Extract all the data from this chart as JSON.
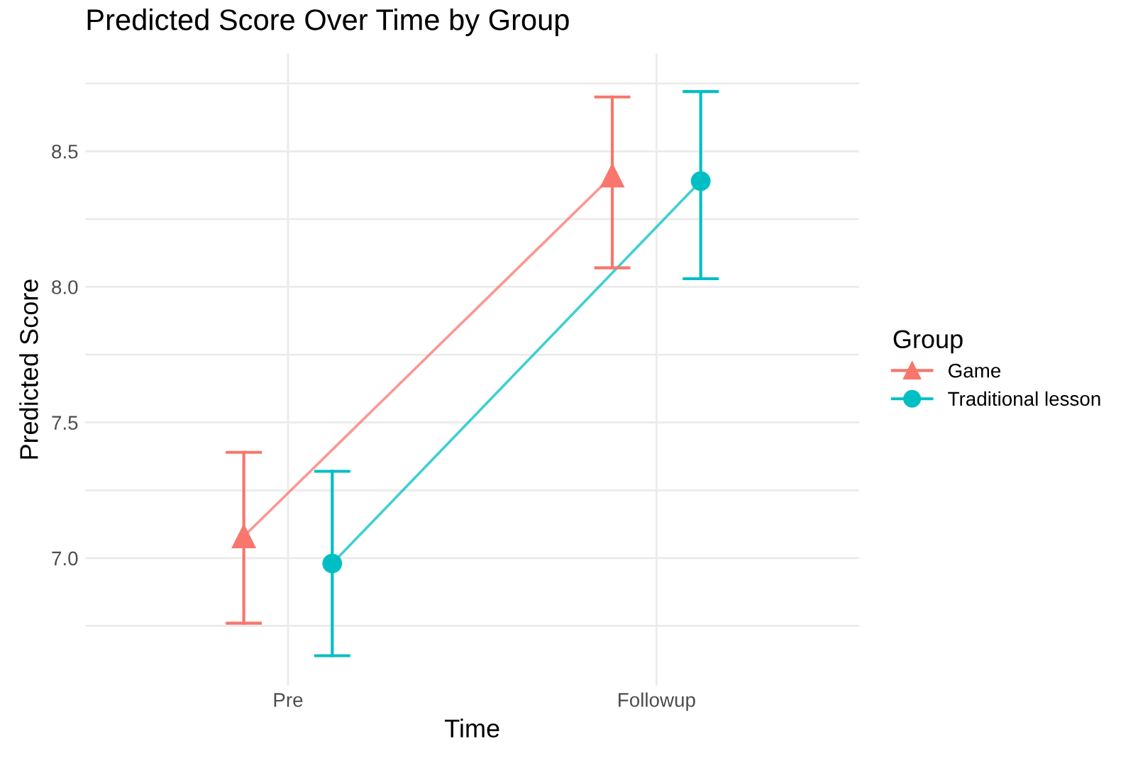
{
  "chart_data": {
    "type": "line",
    "title": "Predicted Score Over Time by Group",
    "xlabel": "Time",
    "ylabel": "Predicted Score",
    "legend_title": "Group",
    "categories": [
      "Pre",
      "Followup"
    ],
    "series": [
      {
        "name": "Game",
        "color": "#f8766d",
        "marker": "triangle",
        "values": [
          7.08,
          8.41
        ],
        "errors": [
          [
            6.76,
            7.39
          ],
          [
            8.07,
            8.7
          ]
        ]
      },
      {
        "name": "Traditional lesson",
        "color": "#00bfc4",
        "marker": "circle",
        "values": [
          6.98,
          8.39
        ],
        "errors": [
          [
            6.64,
            7.32
          ],
          [
            8.03,
            8.72
          ]
        ]
      }
    ],
    "ylim": [
      6.53,
      8.86
    ],
    "yticks": [
      {
        "value": 6.75,
        "label": null
      },
      {
        "value": 7,
        "label": "7.0"
      },
      {
        "value": 7.25,
        "label": null
      },
      7.5,
      {
        "value": 7.75,
        "label": null
      },
      {
        "value": 8,
        "label": "8.0"
      },
      {
        "value": 8.25,
        "label": null
      },
      8.5,
      {
        "value": 8.75,
        "label": null
      }
    ],
    "grid": true,
    "legend": "right",
    "line_style": "solid"
  }
}
